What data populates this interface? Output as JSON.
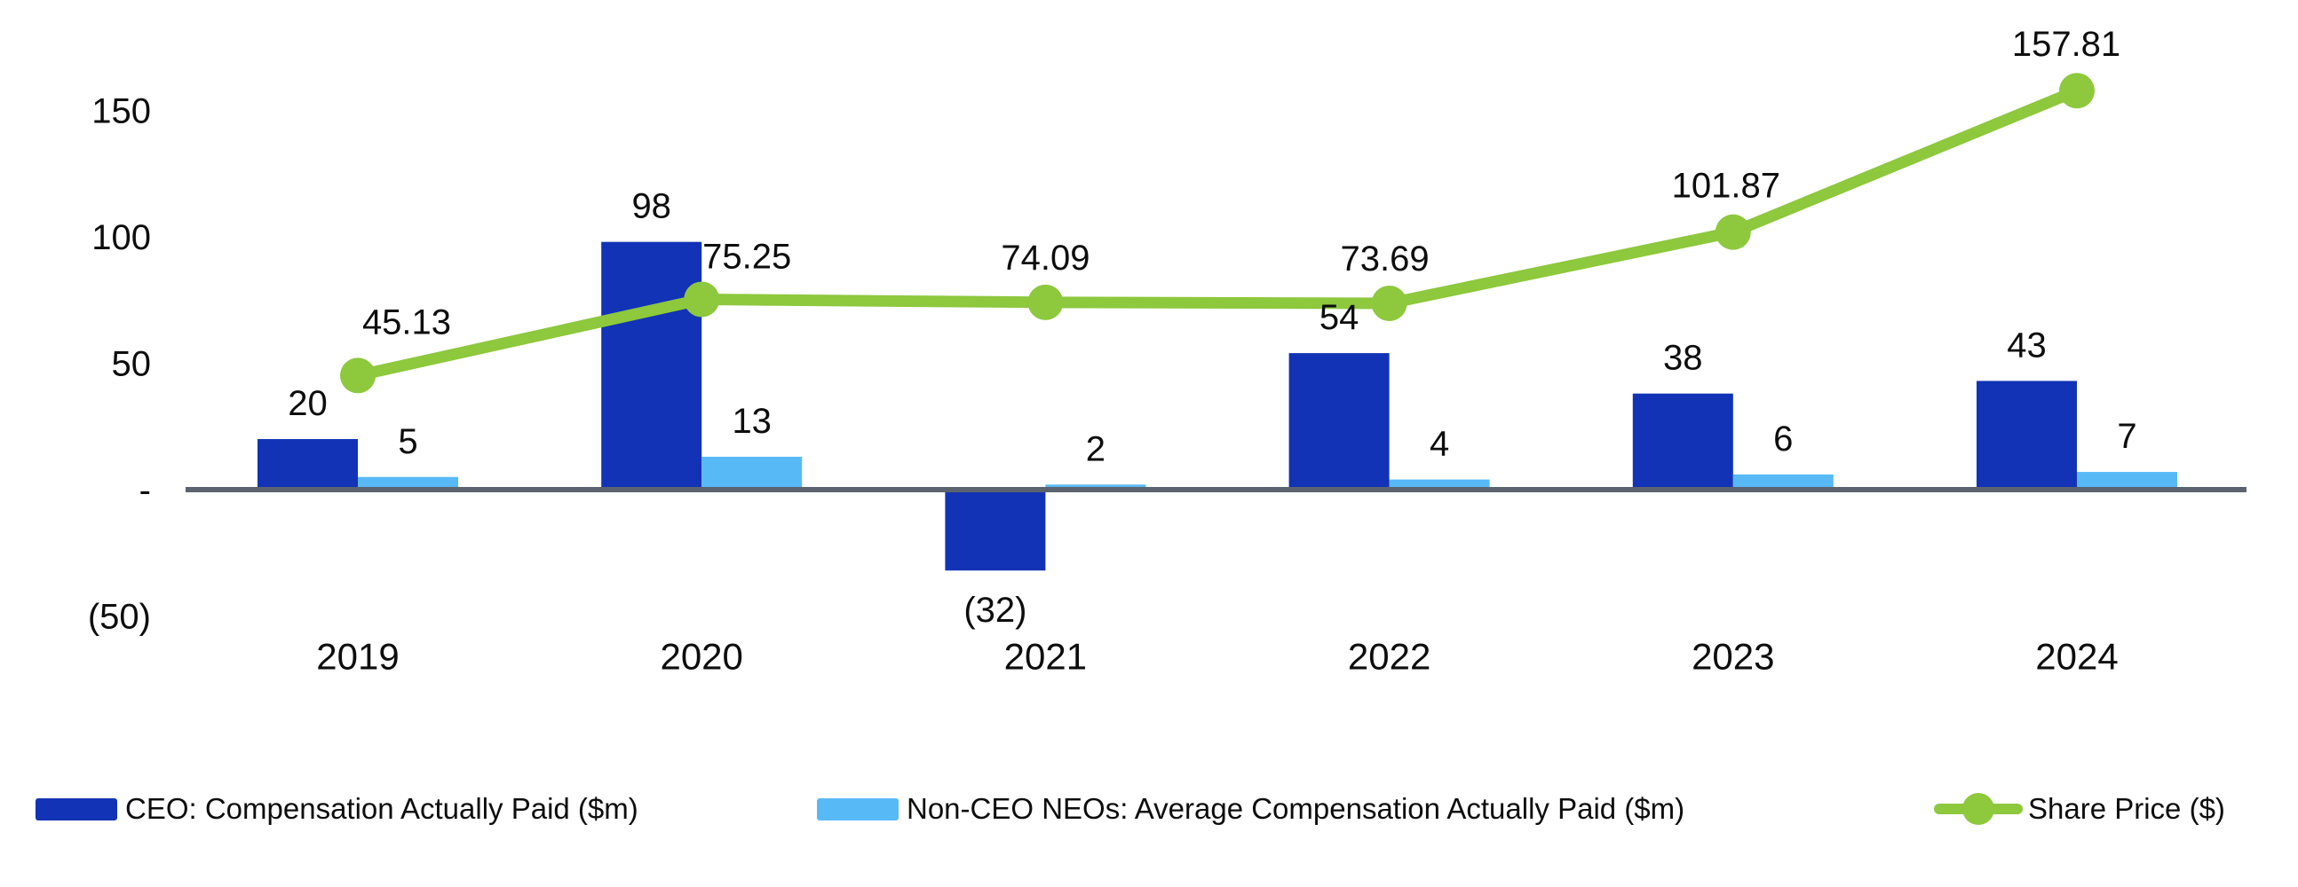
{
  "chart_data": {
    "type": "bar+line",
    "title": "",
    "categories": [
      "2019",
      "2020",
      "2021",
      "2022",
      "2023",
      "2024"
    ],
    "series": [
      {
        "name": "CEO: Compensation Actually Paid ($m)",
        "type": "bar",
        "color": "#1233b6",
        "values": [
          20,
          98,
          -32,
          54,
          38,
          43
        ],
        "labels": [
          "20",
          "98",
          "(32)",
          "54",
          "38",
          "43"
        ]
      },
      {
        "name": "Non-CEO NEOs: Average Compensation Actually Paid ($m)",
        "type": "bar",
        "color": "#58b9f7",
        "values": [
          5,
          13,
          2,
          4,
          6,
          7
        ],
        "labels": [
          "5",
          "13",
          "2",
          "4",
          "6",
          "7"
        ]
      },
      {
        "name": "Share Price ($)",
        "type": "line",
        "color": "#8dc83d",
        "values": [
          45.13,
          75.25,
          74.09,
          73.69,
          101.87,
          157.81
        ],
        "labels": [
          "45.13",
          "75.25",
          "74.09",
          "73.69",
          "101.87",
          "157.81"
        ]
      }
    ],
    "y_axis": {
      "ticks": [
        {
          "label": "150",
          "value": 150
        },
        {
          "label": "100",
          "value": 100
        },
        {
          "label": "50",
          "value": 50
        },
        {
          "label": "-",
          "value": 0
        },
        {
          "label": "(50)",
          "value": -50
        }
      ],
      "range": [
        -50,
        175
      ],
      "grid": false
    },
    "x_axis": {
      "line_color": "#5b636e"
    },
    "legend_position": "bottom",
    "text_color": "#0d0d0d",
    "background": "#ffffff"
  },
  "legend": {
    "items": [
      {
        "label": "CEO: Compensation Actually Paid ($m)",
        "color": "#1233b6",
        "marker": "square"
      },
      {
        "label": "Non-CEO NEOs: Average Compensation Actually Paid ($m)",
        "color": "#58b9f7",
        "marker": "square"
      },
      {
        "label": "Share Price ($)",
        "color": "#8dc83d",
        "marker": "line-dot"
      }
    ]
  }
}
